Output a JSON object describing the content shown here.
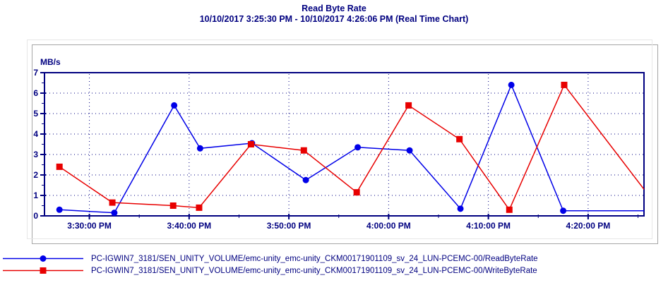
{
  "colors": {
    "text_navy": "#000080",
    "axis": "#000080",
    "read_series": "#0000E8",
    "write_series": "#E80000",
    "panel_border": "#E7E7E7",
    "panel_shadow": "#A6A6A6"
  },
  "chart_data": {
    "type": "line",
    "title": "Read Byte Rate",
    "subtitle": "10/10/2017 3:25:30 PM - 10/10/2017 4:26:06 PM (Real Time Chart)",
    "ylabel": "MB/s",
    "ylim": [
      0,
      7
    ],
    "yticks": [
      0,
      1,
      2,
      3,
      4,
      5,
      6,
      7
    ],
    "y_minor_ticks": [
      0.5,
      1.5,
      2.5,
      3.5,
      4.5,
      5.5,
      6.5
    ],
    "grid": "dotted",
    "legend_position": "bottom-left",
    "x_axis": {
      "start_label": "3:25:30 PM",
      "end_label": "4:26:06 PM",
      "duration_min": 60.1,
      "major_ticks": [
        {
          "t": 4.5,
          "label": "3:30:00 PM"
        },
        {
          "t": 14.5,
          "label": "3:40:00 PM"
        },
        {
          "t": 24.5,
          "label": "3:50:00 PM"
        },
        {
          "t": 34.5,
          "label": "4:00:00 PM"
        },
        {
          "t": 44.5,
          "label": "4:10:00 PM"
        },
        {
          "t": 54.5,
          "label": "4:20:00 PM"
        }
      ],
      "minor_ticks_t": [
        9.5,
        19.5,
        29.5,
        39.5,
        49.5,
        59.5
      ]
    },
    "series": [
      {
        "name": "ReadByteRate",
        "color": "#0000E8",
        "marker": "circle",
        "points": [
          {
            "t": 1.5,
            "v": 0.3
          },
          {
            "t": 7.0,
            "v": 0.15
          },
          {
            "t": 13.0,
            "v": 5.4
          },
          {
            "t": 15.6,
            "v": 3.3
          },
          {
            "t": 20.8,
            "v": 3.55
          },
          {
            "t": 26.2,
            "v": 1.75
          },
          {
            "t": 31.4,
            "v": 3.35
          },
          {
            "t": 36.6,
            "v": 3.2
          },
          {
            "t": 41.7,
            "v": 0.35
          },
          {
            "t": 46.8,
            "v": 6.4
          },
          {
            "t": 52.0,
            "v": 0.25
          },
          {
            "t": 60.1,
            "v": 0.25,
            "edge": true
          }
        ]
      },
      {
        "name": "WriteByteRate",
        "color": "#E80000",
        "marker": "square",
        "points": [
          {
            "t": 1.5,
            "v": 2.4
          },
          {
            "t": 6.8,
            "v": 0.65
          },
          {
            "t": 12.9,
            "v": 0.5
          },
          {
            "t": 15.5,
            "v": 0.4
          },
          {
            "t": 20.7,
            "v": 3.5
          },
          {
            "t": 26.0,
            "v": 3.2
          },
          {
            "t": 31.3,
            "v": 1.15
          },
          {
            "t": 36.5,
            "v": 5.4
          },
          {
            "t": 41.6,
            "v": 3.75
          },
          {
            "t": 46.6,
            "v": 0.3
          },
          {
            "t": 52.1,
            "v": 6.4
          },
          {
            "t": 60.1,
            "v": 1.3,
            "edge": true
          }
        ]
      }
    ]
  },
  "legend": {
    "entries": [
      {
        "series": "ReadByteRate",
        "label": "PC-IGWIN7_3181/SEN_UNITY_VOLUME/emc-unity_emc-unity_CKM00171901109_sv_24_LUN-PCEMC-00/ReadByteRate"
      },
      {
        "series": "WriteByteRate",
        "label": "PC-IGWIN7_3181/SEN_UNITY_VOLUME/emc-unity_emc-unity_CKM00171901109_sv_24_LUN-PCEMC-00/WriteByteRate"
      }
    ]
  }
}
